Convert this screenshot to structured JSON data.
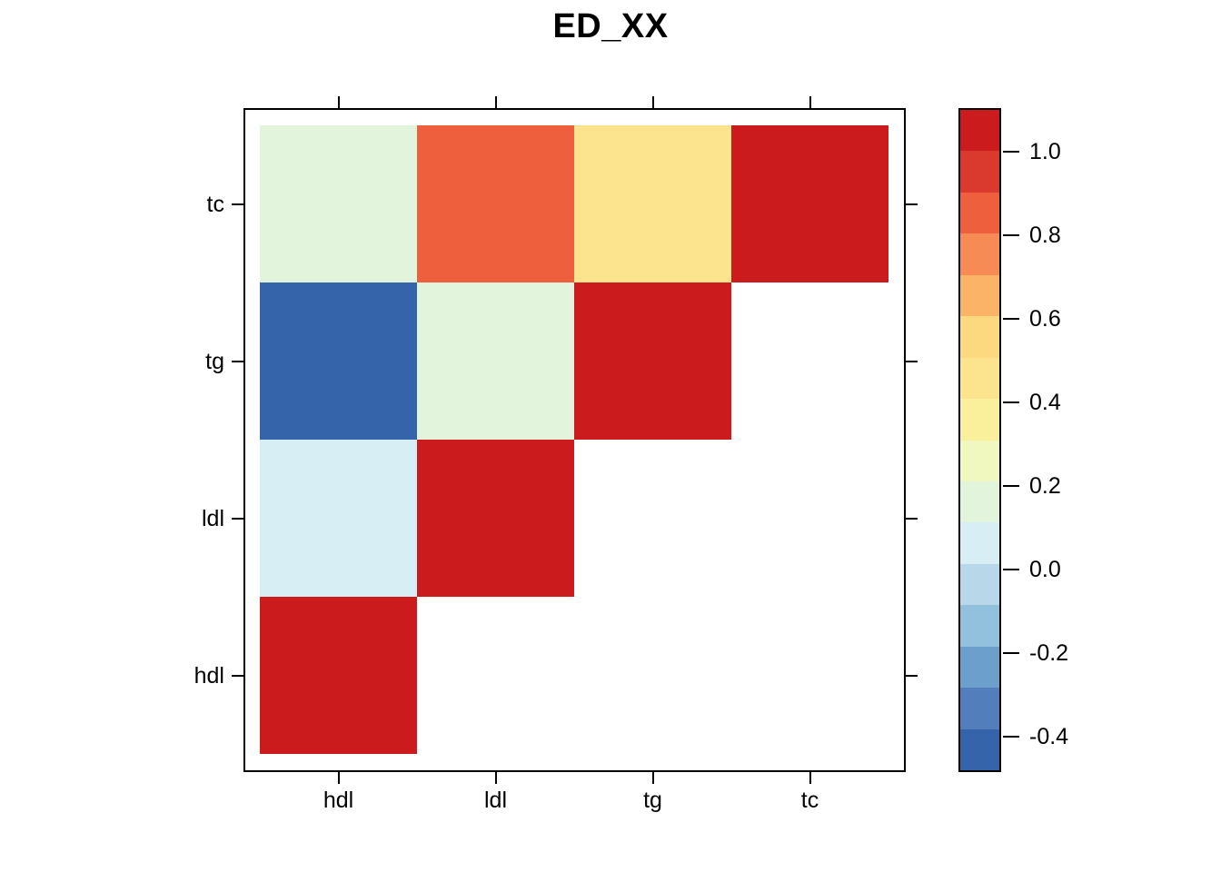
{
  "title": "ED_XX",
  "chart_data": {
    "type": "heatmap",
    "title": "ED_XX",
    "subtitle": "",
    "style": "lower-triangular correlation levelplot",
    "variables": [
      "hdl",
      "ldl",
      "tg",
      "tc"
    ],
    "x_axis": {
      "labels": [
        "hdl",
        "ldl",
        "tg",
        "tc"
      ]
    },
    "y_axis": {
      "labels_top_to_bottom": [
        "tc",
        "tg",
        "ldl",
        "hdl"
      ]
    },
    "grid": false,
    "rows": [
      {
        "row": "tc",
        "cols": [
          {
            "col": "hdl",
            "value": 0.15,
            "color": "#e3f4dc"
          },
          {
            "col": "ldl",
            "value": 0.85,
            "color": "#ee5f3e"
          },
          {
            "col": "tg",
            "value": 0.45,
            "color": "#fce48e"
          },
          {
            "col": "tc",
            "value": 1.0,
            "color": "#cb1b1d"
          }
        ]
      },
      {
        "row": "tg",
        "cols": [
          {
            "col": "hdl",
            "value": -0.45,
            "color": "#3564ab"
          },
          {
            "col": "ldl",
            "value": 0.15,
            "color": "#e3f4dc"
          },
          {
            "col": "tg",
            "value": 1.0,
            "color": "#cb1b1d"
          },
          null
        ]
      },
      {
        "row": "ldl",
        "cols": [
          {
            "col": "hdl",
            "value": 0.05,
            "color": "#d8eef5"
          },
          {
            "col": "ldl",
            "value": 1.0,
            "color": "#cb1b1d"
          },
          null,
          null
        ]
      },
      {
        "row": "hdl",
        "cols": [
          {
            "col": "hdl",
            "value": 1.0,
            "color": "#cb1b1d"
          },
          null,
          null,
          null
        ]
      }
    ],
    "colorbar": {
      "position": "right",
      "range": {
        "top": 1.1,
        "bottom": -0.48
      },
      "ticks": [
        {
          "label": "1.0",
          "value": 1.0
        },
        {
          "label": "0.8",
          "value": 0.8
        },
        {
          "label": "0.6",
          "value": 0.6
        },
        {
          "label": "0.4",
          "value": 0.4
        },
        {
          "label": "0.2",
          "value": 0.2
        },
        {
          "label": "0.0",
          "value": 0.0
        },
        {
          "label": "-0.2",
          "value": -0.2
        },
        {
          "label": "-0.4",
          "value": -0.4
        }
      ],
      "segments_top_to_bottom": [
        "#cb1b1d",
        "#d93a2d",
        "#ee5f3e",
        "#f78b55",
        "#fab367",
        "#fcd97e",
        "#fce48e",
        "#faef9b",
        "#f0f8c0",
        "#e3f4dc",
        "#d8eef5",
        "#b8d8ea",
        "#92c1dd",
        "#6d9fcc",
        "#527fbc",
        "#3564ab"
      ]
    },
    "frame_color": "#000000",
    "background_color": "#ffffff"
  }
}
